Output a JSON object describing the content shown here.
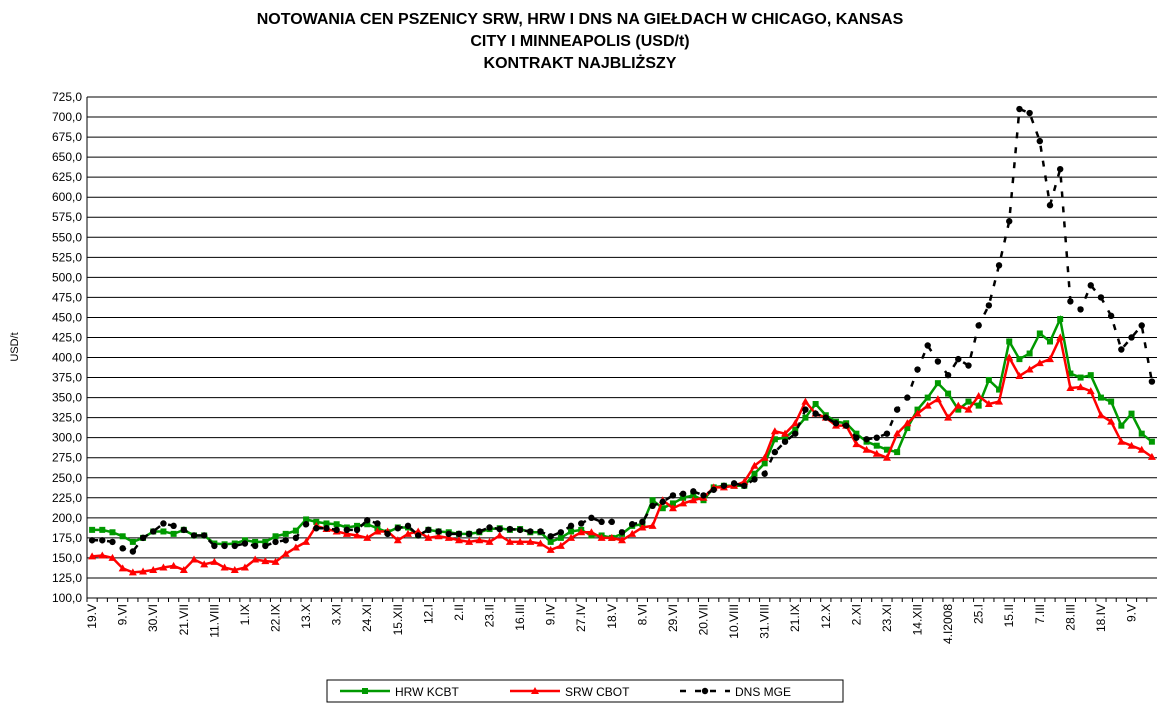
{
  "chart_data": {
    "type": "line",
    "title": [
      "NOTOWANIA CEN PSZENICY SRW, HRW I DNS NA GIEŁDACH W CHICAGO, KANSAS",
      "CITY I MINNEAPOLIS (USD/t)",
      "KONTRAKT NAJBLIŻSZY"
    ],
    "y_label": "USD/t",
    "categories": [
      "19.V",
      null,
      null,
      "9.VI",
      null,
      null,
      "30.VI",
      null,
      null,
      "21.VII",
      null,
      null,
      "11.VIII",
      null,
      null,
      "1.IX",
      null,
      null,
      "22.IX",
      null,
      null,
      "13.X",
      null,
      null,
      "3.XI",
      null,
      null,
      "24.XI",
      null,
      null,
      "15.XII",
      null,
      null,
      "12.I",
      null,
      null,
      "2.II",
      null,
      null,
      "23.II",
      null,
      null,
      "16.III",
      null,
      null,
      "9.IV",
      null,
      null,
      "27.IV",
      null,
      null,
      "18.V",
      null,
      null,
      "8.VI",
      null,
      null,
      "29.VI",
      null,
      null,
      "20.VII",
      null,
      null,
      "10.VIII",
      null,
      null,
      "31.VIII",
      null,
      null,
      "21.IX",
      null,
      null,
      "12.X",
      null,
      null,
      "2.XI",
      null,
      null,
      "23.XI",
      null,
      null,
      "14.XII",
      null,
      null,
      "4.I2008",
      null,
      null,
      "25.I",
      null,
      null,
      "15.II",
      null,
      null,
      "7.III",
      null,
      null,
      "28.III",
      null,
      null,
      "18.IV",
      null,
      null,
      "9.V",
      null,
      null
    ],
    "series": [
      {
        "name": "HRW KCBT",
        "color": "#009900",
        "marker": "square",
        "dashed": false,
        "values": [
          185,
          185,
          182,
          177,
          170,
          175,
          183,
          183,
          180,
          185,
          178,
          178,
          168,
          167,
          168,
          172,
          170,
          170,
          177,
          180,
          184,
          198,
          195,
          193,
          192,
          188,
          190,
          192,
          187,
          182,
          188,
          188,
          178,
          185,
          183,
          182,
          180,
          180,
          182,
          186,
          187,
          185,
          186,
          182,
          182,
          170,
          175,
          183,
          185,
          178,
          178,
          175,
          180,
          190,
          192,
          222,
          212,
          218,
          225,
          228,
          222,
          238,
          240,
          240,
          240,
          255,
          268,
          298,
          300,
          310,
          325,
          342,
          328,
          320,
          318,
          305,
          295,
          290,
          285,
          282,
          312,
          335,
          350,
          368,
          355,
          335,
          345,
          340,
          372,
          360,
          420,
          398,
          405,
          430,
          420,
          448,
          380,
          375,
          378,
          350,
          345,
          315,
          330,
          305,
          295
        ]
      },
      {
        "name": "SRW CBOT",
        "color": "#ff0000",
        "marker": "triangle",
        "dashed": false,
        "values": [
          152,
          153,
          150,
          137,
          132,
          133,
          135,
          138,
          140,
          135,
          148,
          142,
          145,
          138,
          135,
          138,
          148,
          146,
          145,
          155,
          163,
          170,
          190,
          186,
          183,
          180,
          178,
          175,
          183,
          183,
          172,
          180,
          183,
          175,
          177,
          175,
          172,
          170,
          172,
          170,
          178,
          170,
          170,
          170,
          168,
          160,
          165,
          175,
          182,
          182,
          175,
          175,
          172,
          180,
          188,
          190,
          222,
          212,
          218,
          222,
          225,
          238,
          238,
          240,
          245,
          265,
          275,
          308,
          305,
          318,
          345,
          330,
          325,
          315,
          315,
          292,
          285,
          280,
          275,
          305,
          318,
          330,
          340,
          348,
          325,
          340,
          335,
          352,
          342,
          345,
          400,
          377,
          385,
          393,
          398,
          425,
          362,
          363,
          358,
          328,
          320,
          295,
          290,
          285,
          276
        ]
      },
      {
        "name": "DNS MGE",
        "color": "#000000",
        "marker": "circle",
        "dashed": true,
        "values": [
          172,
          172,
          170,
          162,
          158,
          175,
          183,
          193,
          190,
          185,
          178,
          178,
          165,
          165,
          165,
          168,
          165,
          165,
          170,
          172,
          175,
          192,
          187,
          187,
          185,
          185,
          185,
          197,
          193,
          180,
          187,
          190,
          178,
          185,
          183,
          180,
          180,
          180,
          183,
          188,
          186,
          186,
          185,
          183,
          183,
          177,
          182,
          190,
          193,
          200,
          195,
          195,
          182,
          192,
          195,
          215,
          220,
          228,
          230,
          233,
          228,
          235,
          240,
          243,
          240,
          248,
          255,
          282,
          295,
          305,
          335,
          330,
          325,
          318,
          315,
          300,
          298,
          300,
          305,
          335,
          350,
          385,
          415,
          395,
          378,
          398,
          390,
          440,
          465,
          515,
          570,
          710,
          705,
          670,
          590,
          635,
          470,
          460,
          490,
          475,
          452,
          410,
          425,
          440,
          370
        ]
      }
    ],
    "ylim": [
      100,
      725
    ],
    "yticks": [
      {
        "value": 100,
        "label": "100,0"
      },
      {
        "value": 125,
        "label": "125,0"
      },
      {
        "value": 150,
        "label": "150,0"
      },
      {
        "value": 175,
        "label": "175,0"
      },
      {
        "value": 200,
        "label": "200,0"
      },
      {
        "value": 225,
        "label": "225,0"
      },
      {
        "value": 250,
        "label": "250,0"
      },
      {
        "value": 275,
        "label": "275,0"
      },
      {
        "value": 300,
        "label": "300,0"
      },
      {
        "value": 325,
        "label": "325,0"
      },
      {
        "value": 350,
        "label": "350,0"
      },
      {
        "value": 375,
        "label": "375,0"
      },
      {
        "value": 400,
        "label": "400,0"
      },
      {
        "value": 425,
        "label": "425,0"
      },
      {
        "value": 450,
        "label": "450,0"
      },
      {
        "value": 475,
        "label": "475,0"
      },
      {
        "value": 500,
        "label": "500,0"
      },
      {
        "value": 525,
        "label": "525,0"
      },
      {
        "value": 550,
        "label": "550,0"
      },
      {
        "value": 575,
        "label": "575,0"
      },
      {
        "value": 600,
        "label": "600,0"
      },
      {
        "value": 625,
        "label": "625,0"
      },
      {
        "value": 650,
        "label": "650,0"
      },
      {
        "value": 675,
        "label": "675,0"
      },
      {
        "value": 700,
        "label": "700,0"
      },
      {
        "value": 725,
        "label": "725,0"
      }
    ],
    "grid": true,
    "legend": "bottom"
  }
}
